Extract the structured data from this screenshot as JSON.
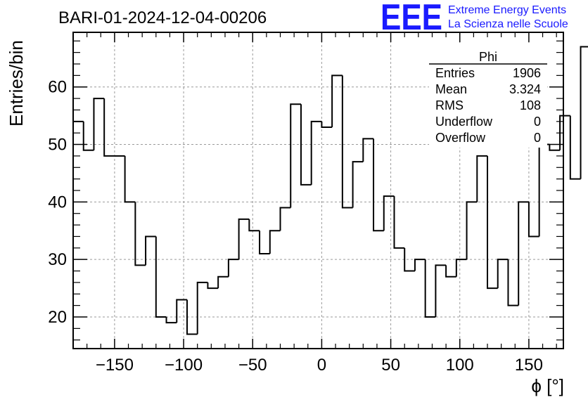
{
  "header": {
    "run_title": "BARI-01-2024-12-04-00206",
    "logo_text": "EEE",
    "logo_line1": "Extreme Energy Events",
    "logo_line2": "La Scienza nelle Scuole"
  },
  "stats_box": {
    "name": "Phi",
    "rows": [
      {
        "label": "Entries",
        "value": "1906"
      },
      {
        "label": "Mean",
        "value": "3.324"
      },
      {
        "label": "RMS",
        "value": "108"
      },
      {
        "label": "Underflow",
        "value": "0"
      },
      {
        "label": "Overflow",
        "value": "0"
      }
    ]
  },
  "chart_data": {
    "type": "bar",
    "title": "BARI-01-2024-12-04-00206",
    "xlabel": "ϕ [°]",
    "ylabel": "Entries/bin",
    "xlim": [
      -180,
      175
    ],
    "ylim": [
      14.5,
      69.5
    ],
    "x_ticks": [
      -150,
      -100,
      -50,
      0,
      50,
      100,
      150
    ],
    "x_tick_labels": [
      "−150",
      "−100",
      "−50",
      "0",
      "50",
      "100",
      "150"
    ],
    "y_ticks": [
      20,
      30,
      40,
      50,
      60
    ],
    "y_tick_labels": [
      "20",
      "30",
      "40",
      "50",
      "60"
    ],
    "grid": true,
    "bin_start": -180,
    "bin_width": 7.5,
    "values": [
      54,
      49,
      58,
      48,
      48,
      40,
      29,
      34,
      20,
      19,
      23,
      17,
      26,
      25,
      27,
      30,
      37,
      35,
      31,
      35,
      39,
      57,
      43,
      54,
      53,
      62,
      39,
      47,
      51,
      35,
      41,
      32,
      28,
      30,
      20,
      29,
      27,
      30,
      40,
      48,
      25,
      30,
      22,
      40,
      34,
      50,
      49,
      55,
      44,
      67
    ]
  }
}
